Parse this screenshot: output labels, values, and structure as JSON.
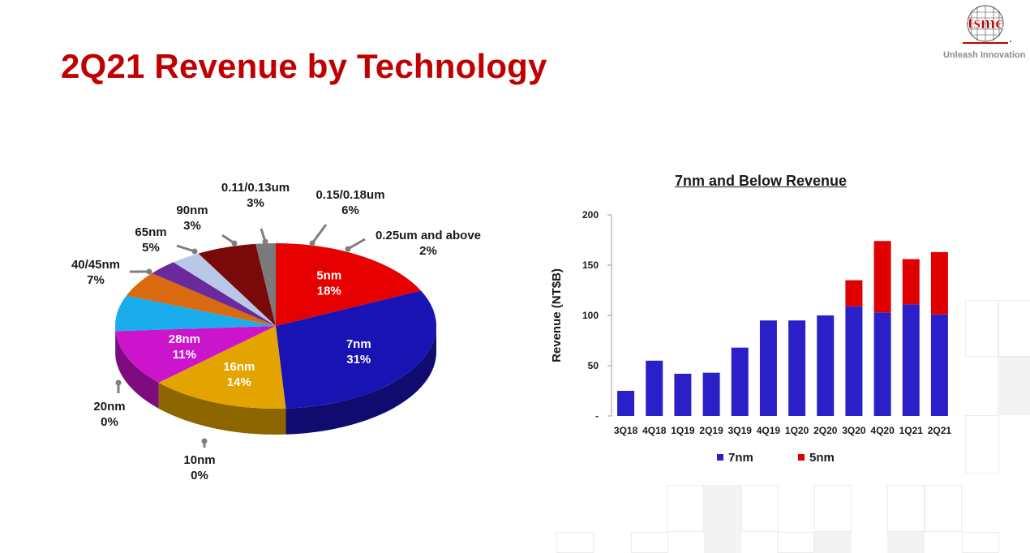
{
  "slide": {
    "title": "2Q21 Revenue by Technology",
    "logo_text": "tsmc",
    "tagline": "Unleash Innovation"
  },
  "colors": {
    "brand_red": "#c00000"
  },
  "chart_data": [
    {
      "type": "pie",
      "style": "3d",
      "slices": [
        {
          "label": "5nm",
          "value": 18,
          "text": "18%",
          "color": "#e60000"
        },
        {
          "label": "7nm",
          "value": 31,
          "text": "31%",
          "color": "#1a13b3"
        },
        {
          "label": "10nm",
          "value": 0,
          "text": "0%",
          "color": "#8a2e00"
        },
        {
          "label": "16nm",
          "value": 14,
          "text": "14%",
          "color": "#e3a400"
        },
        {
          "label": "20nm",
          "value": 0,
          "text": "0%",
          "color": "#6b6b6b"
        },
        {
          "label": "28nm",
          "value": 11,
          "text": "11%",
          "color": "#cc14cc"
        },
        {
          "label": "40/45nm",
          "value": 7,
          "text": "7%",
          "color": "#1aacec"
        },
        {
          "label": "65nm",
          "value": 5,
          "text": "5%",
          "color": "#d96a10"
        },
        {
          "label": "90nm",
          "value": 3,
          "text": "3%",
          "color": "#6a2a9c"
        },
        {
          "label": "0.11/0.13um",
          "value": 3,
          "text": "3%",
          "color": "#b8c8e6"
        },
        {
          "label": "0.15/0.18um",
          "value": 6,
          "text": "6%",
          "color": "#7a0a0a"
        },
        {
          "label": "0.25um and above",
          "value": 2,
          "text": "2%",
          "color": "#7a7a7a"
        }
      ]
    },
    {
      "type": "bar",
      "stacked": true,
      "title": "7nm and Below Revenue",
      "ylabel": "Revenue (NT$B)",
      "ylim": [
        0,
        200
      ],
      "yticks": [
        0,
        50,
        100,
        150,
        200
      ],
      "ytick_labels": [
        "-",
        "50",
        "100",
        "150",
        "200"
      ],
      "categories": [
        "3Q18",
        "4Q18",
        "1Q19",
        "2Q19",
        "3Q19",
        "4Q19",
        "1Q20",
        "2Q20",
        "3Q20",
        "4Q20",
        "1Q21",
        "2Q21"
      ],
      "series": [
        {
          "name": "7nm",
          "color": "#2b20c8",
          "values": [
            25,
            55,
            42,
            43,
            68,
            95,
            95,
            100,
            109,
            103,
            111,
            101
          ]
        },
        {
          "name": "5nm",
          "color": "#e00000",
          "values": [
            0,
            0,
            0,
            0,
            0,
            0,
            0,
            0,
            26,
            71,
            45,
            62
          ]
        }
      ],
      "legend_position": "bottom"
    }
  ]
}
